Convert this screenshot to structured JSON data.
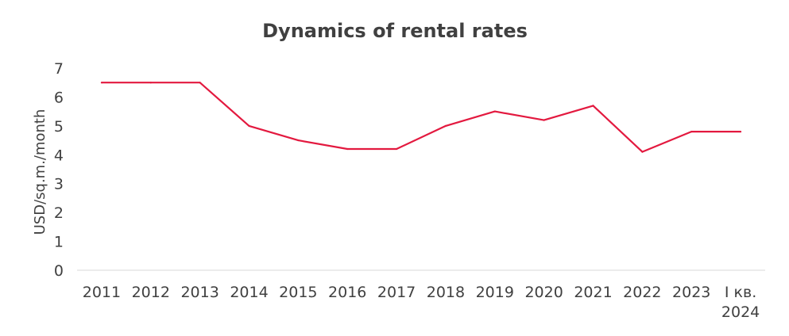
{
  "chart_data": {
    "type": "line",
    "title": "Dynamics of rental rates",
    "xlabel": "",
    "ylabel": "USD/sq.m./month",
    "categories": [
      [
        "2011"
      ],
      [
        "2012"
      ],
      [
        "2013"
      ],
      [
        "2014"
      ],
      [
        "2015"
      ],
      [
        "2016"
      ],
      [
        "2017"
      ],
      [
        "2018"
      ],
      [
        "2019"
      ],
      [
        "2020"
      ],
      [
        "2021"
      ],
      [
        "2022"
      ],
      [
        "2023"
      ],
      [
        "I кв.",
        "2024"
      ]
    ],
    "series": [
      {
        "values": [
          6.5,
          6.5,
          6.5,
          5.0,
          4.5,
          4.2,
          4.2,
          5.0,
          5.5,
          5.2,
          5.7,
          4.1,
          4.8,
          4.8
        ],
        "color": "#e3193f"
      }
    ],
    "ylim": [
      0,
      7
    ],
    "yticks": [
      0,
      1,
      2,
      3,
      4,
      5,
      6,
      7
    ],
    "grid": false,
    "legend": "none",
    "axis_color": "#d9d9d9",
    "text_color": "#404040"
  }
}
